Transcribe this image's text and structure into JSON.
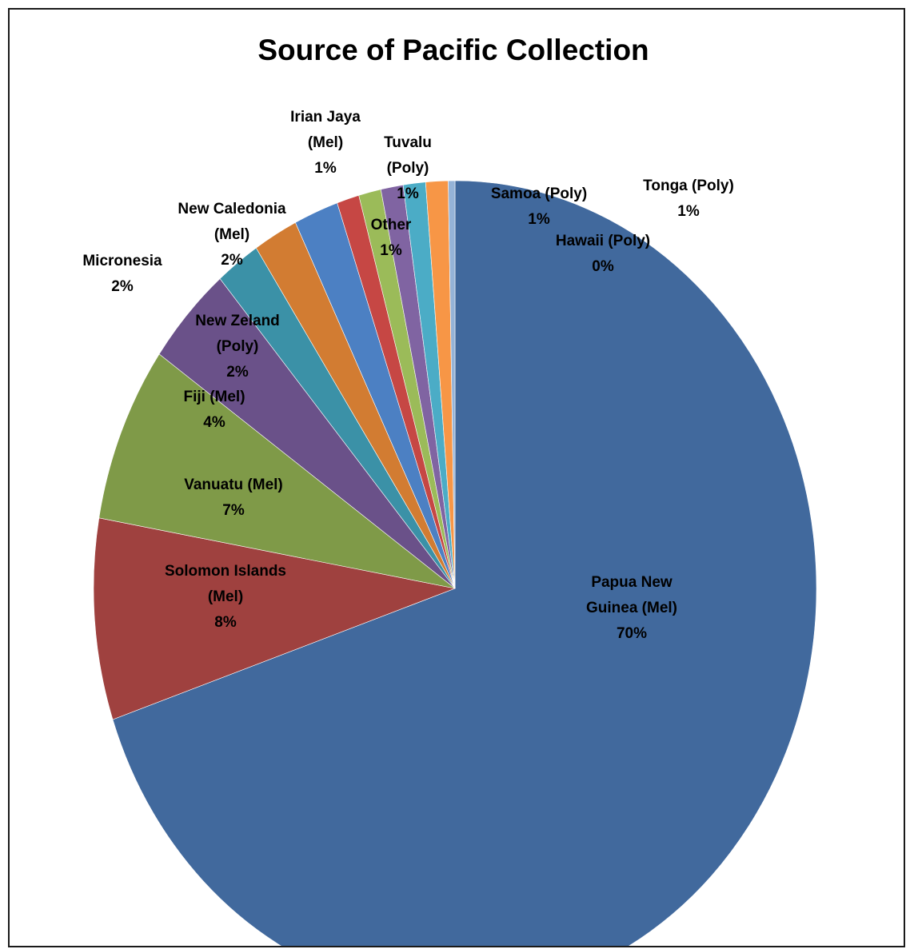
{
  "chart_data": {
    "type": "pie",
    "title": "Source of Pacific Collection",
    "slices": [
      {
        "label": [
          "Papua New",
          "Guinea (Mel)",
          "70%"
        ],
        "name": "Papua New Guinea (Mel)",
        "value": 70,
        "color": "#41699d"
      },
      {
        "label": [
          "Solomon Islands",
          "(Mel)",
          "8%"
        ],
        "name": "Solomon Islands (Mel)",
        "value": 8,
        "color": "#9f413f"
      },
      {
        "label": [
          "Vanuatu (Mel)",
          "7%"
        ],
        "name": "Vanuatu (Mel)",
        "value": 7,
        "color": "#7f9a48"
      },
      {
        "label": [
          "Fiji (Mel)",
          "4%"
        ],
        "name": "Fiji (Mel)",
        "value": 4,
        "color": "#6a5189"
      },
      {
        "label": [
          "New Zeland",
          "(Poly)",
          "2%"
        ],
        "name": "New Zeland (Poly)",
        "value": 2,
        "color": "#3b91a7"
      },
      {
        "label": [
          "Micronesia",
          "2%"
        ],
        "name": "Micronesia",
        "value": 2,
        "color": "#d27c32"
      },
      {
        "label": [
          "New Caledonia",
          "(Mel)",
          "2%"
        ],
        "name": "New Caledonia (Mel)",
        "value": 2,
        "color": "#4c80c3"
      },
      {
        "label": [
          "Irian Jaya",
          "(Mel)",
          "1%"
        ],
        "name": "Irian Jaya (Mel)",
        "value": 1,
        "color": "#c64744"
      },
      {
        "label": [
          "Other",
          "1%"
        ],
        "name": "Other",
        "value": 1,
        "color": "#9bbb59"
      },
      {
        "label": [
          "Tuvalu",
          "(Poly)",
          "1%"
        ],
        "name": "Tuvalu (Poly)",
        "value": 1,
        "color": "#8064a2"
      },
      {
        "label": [
          "Samoa (Poly)",
          "1%"
        ],
        "name": "Samoa (Poly)",
        "value": 1,
        "color": "#4bacc6"
      },
      {
        "label": [
          "Tonga (Poly)",
          "1%"
        ],
        "name": "Tonga (Poly)",
        "value": 1,
        "color": "#f79646"
      },
      {
        "label": [
          "Hawaii (Poly)",
          "0%"
        ],
        "name": "Hawaii (Poly)",
        "value": 0.3,
        "color": "#95b3d7"
      }
    ]
  }
}
